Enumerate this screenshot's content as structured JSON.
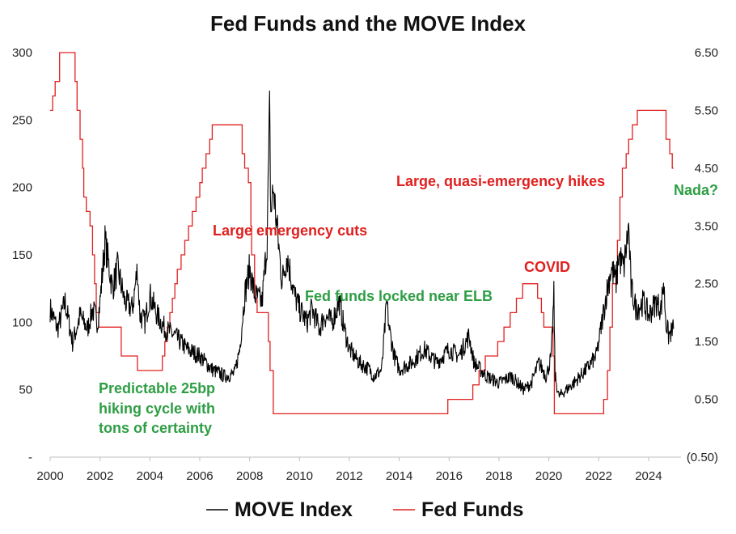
{
  "chart_data": {
    "type": "line",
    "title": "Fed Funds and the MOVE Index",
    "x_ticks": [
      "2000",
      "2002",
      "2004",
      "2006",
      "2008",
      "2010",
      "2012",
      "2014",
      "2016",
      "2018",
      "2020",
      "2022",
      "2024"
    ],
    "xlim": [
      2000,
      2025.3
    ],
    "left_axis": {
      "ylim": [
        0,
        300
      ],
      "tick_labels": [
        "-",
        "50",
        "100",
        "150",
        "200",
        "250",
        "300"
      ],
      "tick_values": [
        0,
        50,
        100,
        150,
        200,
        250,
        300
      ]
    },
    "right_axis": {
      "ylim": [
        -0.5,
        6.5
      ],
      "tick_labels": [
        "(0.50)",
        "0.50",
        "1.50",
        "2.50",
        "3.50",
        "4.50",
        "5.50",
        "6.50"
      ],
      "tick_values": [
        -0.5,
        0.5,
        1.5,
        2.5,
        3.5,
        4.5,
        5.5,
        6.5
      ]
    },
    "series": [
      {
        "name": "MOVE Index",
        "axis": "left",
        "color": "#000000",
        "x": [
          2000.0,
          2000.3,
          2000.6,
          2000.9,
          2001.2,
          2001.5,
          2001.7,
          2001.9,
          2002.0,
          2002.2,
          2002.5,
          2002.7,
          2003.0,
          2003.3,
          2003.5,
          2003.6,
          2003.8,
          2004.0,
          2004.3,
          2004.6,
          2005.0,
          2005.5,
          2006.0,
          2006.5,
          2007.0,
          2007.4,
          2007.6,
          2007.8,
          2008.0,
          2008.2,
          2008.5,
          2008.7,
          2008.8,
          2008.85,
          2008.95,
          2009.1,
          2009.3,
          2009.5,
          2009.8,
          2010.0,
          2010.3,
          2010.5,
          2010.8,
          2011.0,
          2011.3,
          2011.6,
          2011.8,
          2012.0,
          2012.4,
          2012.8,
          2013.0,
          2013.3,
          2013.5,
          2013.6,
          2013.8,
          2014.0,
          2014.5,
          2015.0,
          2015.5,
          2016.0,
          2016.4,
          2016.8,
          2017.0,
          2017.5,
          2018.0,
          2018.5,
          2019.0,
          2019.3,
          2019.6,
          2019.9,
          2020.1,
          2020.2,
          2020.25,
          2020.4,
          2020.7,
          2021.0,
          2021.5,
          2021.9,
          2022.0,
          2022.3,
          2022.5,
          2022.7,
          2022.8,
          2023.0,
          2023.2,
          2023.3,
          2023.5,
          2023.8,
          2024.0,
          2024.3,
          2024.5,
          2024.6,
          2024.7,
          2024.8,
          2025.0
        ],
        "values": [
          110,
          95,
          115,
          85,
          105,
          95,
          110,
          100,
          115,
          160,
          125,
          140,
          115,
          110,
          140,
          105,
          100,
          120,
          105,
          95,
          90,
          80,
          75,
          65,
          60,
          62,
          80,
          120,
          140,
          120,
          115,
          160,
          255,
          180,
          200,
          170,
          130,
          150,
          120,
          110,
          100,
          110,
          95,
          105,
          100,
          115,
          95,
          80,
          70,
          65,
          60,
          65,
          115,
          95,
          75,
          65,
          70,
          80,
          70,
          80,
          75,
          90,
          70,
          60,
          55,
          60,
          50,
          55,
          70,
          60,
          75,
          120,
          60,
          45,
          50,
          55,
          65,
          75,
          85,
          120,
          140,
          130,
          150,
          140,
          170,
          125,
          110,
          115,
          105,
          115,
          110,
          130,
          100,
          90,
          95
        ]
      },
      {
        "name": "Fed Funds",
        "axis": "right",
        "color": "#e0201f",
        "step_points": [
          [
            2000.0,
            5.5
          ],
          [
            2000.1,
            5.75
          ],
          [
            2000.2,
            6.0
          ],
          [
            2000.38,
            6.5
          ],
          [
            2000.95,
            6.5
          ],
          [
            2001.0,
            6.0
          ],
          [
            2001.08,
            5.5
          ],
          [
            2001.2,
            5.0
          ],
          [
            2001.3,
            4.5
          ],
          [
            2001.35,
            4.0
          ],
          [
            2001.45,
            3.75
          ],
          [
            2001.6,
            3.5
          ],
          [
            2001.7,
            3.0
          ],
          [
            2001.78,
            2.5
          ],
          [
            2001.85,
            2.0
          ],
          [
            2001.95,
            1.75
          ],
          [
            2002.85,
            1.25
          ],
          [
            2003.5,
            1.0
          ],
          [
            2004.5,
            1.25
          ],
          [
            2004.6,
            1.5
          ],
          [
            2004.7,
            1.75
          ],
          [
            2004.8,
            2.0
          ],
          [
            2004.9,
            2.25
          ],
          [
            2005.0,
            2.5
          ],
          [
            2005.1,
            2.75
          ],
          [
            2005.25,
            3.0
          ],
          [
            2005.4,
            3.25
          ],
          [
            2005.55,
            3.5
          ],
          [
            2005.7,
            3.75
          ],
          [
            2005.85,
            4.0
          ],
          [
            2006.0,
            4.25
          ],
          [
            2006.1,
            4.5
          ],
          [
            2006.25,
            4.75
          ],
          [
            2006.4,
            5.0
          ],
          [
            2006.5,
            5.25
          ],
          [
            2007.7,
            4.75
          ],
          [
            2007.8,
            4.5
          ],
          [
            2007.95,
            4.25
          ],
          [
            2008.05,
            3.5
          ],
          [
            2008.08,
            3.0
          ],
          [
            2008.2,
            2.25
          ],
          [
            2008.3,
            2.0
          ],
          [
            2008.75,
            1.5
          ],
          [
            2008.82,
            1.0
          ],
          [
            2008.95,
            0.25
          ],
          [
            2015.95,
            0.5
          ],
          [
            2016.95,
            0.75
          ],
          [
            2017.2,
            1.0
          ],
          [
            2017.45,
            1.25
          ],
          [
            2017.95,
            1.5
          ],
          [
            2018.2,
            1.75
          ],
          [
            2018.45,
            2.0
          ],
          [
            2018.7,
            2.25
          ],
          [
            2018.95,
            2.5
          ],
          [
            2019.55,
            2.25
          ],
          [
            2019.7,
            2.0
          ],
          [
            2019.8,
            1.75
          ],
          [
            2020.17,
            1.25
          ],
          [
            2020.22,
            0.25
          ],
          [
            2022.2,
            0.5
          ],
          [
            2022.35,
            1.0
          ],
          [
            2022.45,
            1.75
          ],
          [
            2022.55,
            2.5
          ],
          [
            2022.75,
            3.25
          ],
          [
            2022.85,
            4.0
          ],
          [
            2022.95,
            4.5
          ],
          [
            2023.1,
            4.75
          ],
          [
            2023.2,
            5.0
          ],
          [
            2023.35,
            5.25
          ],
          [
            2023.55,
            5.5
          ],
          [
            2024.7,
            5.0
          ],
          [
            2024.85,
            4.75
          ],
          [
            2024.95,
            4.5
          ],
          [
            2025.0,
            4.5
          ]
        ]
      }
    ],
    "annotations": [
      {
        "text": "Large emergency cuts",
        "color": "#e0201f"
      },
      {
        "text": "Large, quasi-emergency hikes",
        "color": "#e0201f"
      },
      {
        "text": "COVID",
        "color": "#e0201f"
      },
      {
        "text": "Nada?",
        "color": "#2e9e44"
      },
      {
        "text": "Fed funds locked near ELB",
        "color": "#2e9e44"
      },
      {
        "text": "Predictable 25bp",
        "color": "#2e9e44"
      },
      {
        "text": "hiking cycle with",
        "color": "#2e9e44"
      },
      {
        "text": "tons of certainty",
        "color": "#2e9e44"
      }
    ],
    "legend": {
      "position": "bottom",
      "items": [
        "MOVE Index",
        "Fed Funds"
      ]
    },
    "grid": false
  }
}
